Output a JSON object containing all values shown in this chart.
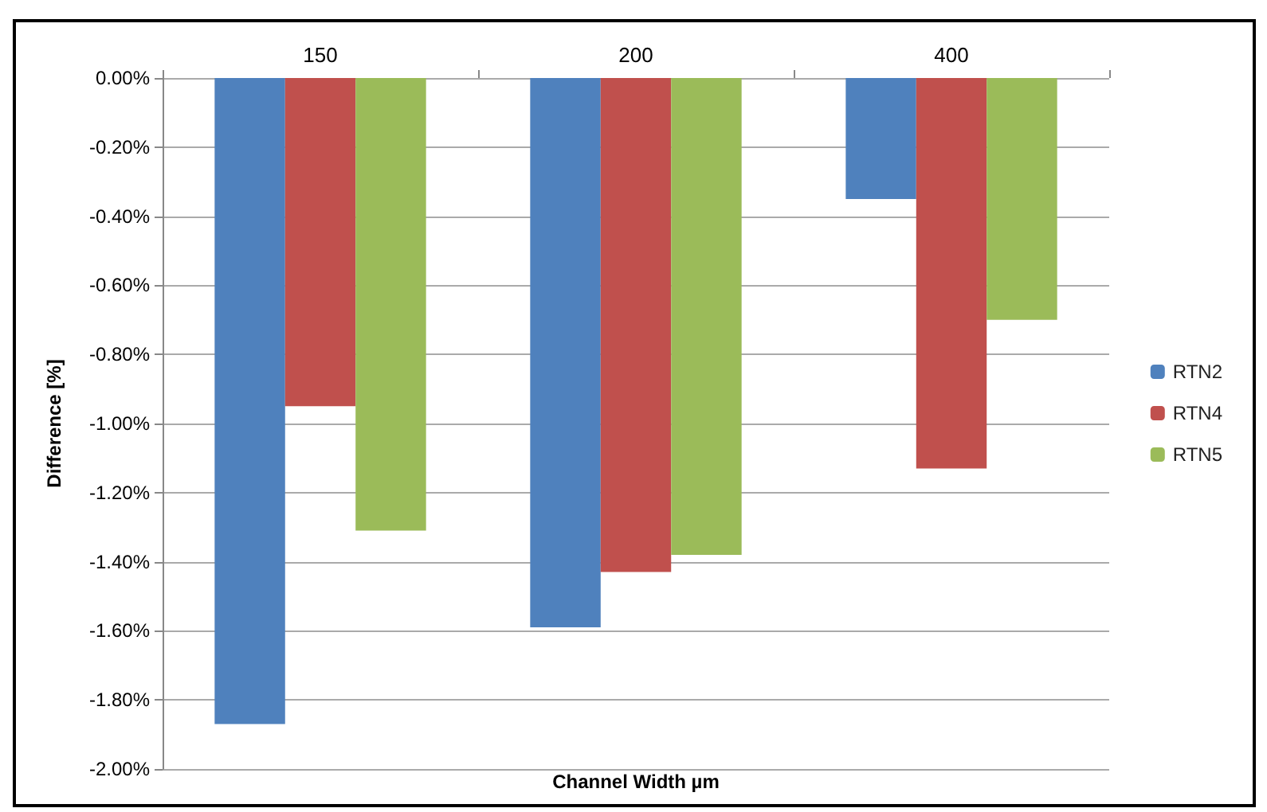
{
  "chart_data": {
    "type": "bar",
    "xlabel": "Channel Width µm",
    "ylabel": "Difference [%]",
    "categories": [
      "150",
      "200",
      "400"
    ],
    "series": [
      {
        "name": "RTN2",
        "color": "#4f81bd",
        "values": [
          -1.87,
          -1.59,
          -0.35
        ]
      },
      {
        "name": "RTN4",
        "color": "#c0504d",
        "values": [
          -0.95,
          -1.43,
          -1.13
        ]
      },
      {
        "name": "RTN5",
        "color": "#9bbb59",
        "values": [
          -1.31,
          -1.38,
          -0.7
        ]
      }
    ],
    "ylim": [
      -2,
      0
    ],
    "yticks": [
      {
        "value": 0,
        "label": "0.00%"
      },
      {
        "value": -0.2,
        "label": "-0.20%"
      },
      {
        "value": -0.4,
        "label": "-0.40%"
      },
      {
        "value": -0.6,
        "label": "-0.60%"
      },
      {
        "value": -0.8,
        "label": "-0.80%"
      },
      {
        "value": -1,
        "label": "-1.00%"
      },
      {
        "value": -1.2,
        "label": "-1.20%"
      },
      {
        "value": -1.4,
        "label": "-1.40%"
      },
      {
        "value": -1.6,
        "label": "-1.60%"
      },
      {
        "value": -1.8,
        "label": "-1.80%"
      },
      {
        "value": -2,
        "label": "-2.00%"
      }
    ],
    "grid": "y",
    "legend": "right"
  }
}
